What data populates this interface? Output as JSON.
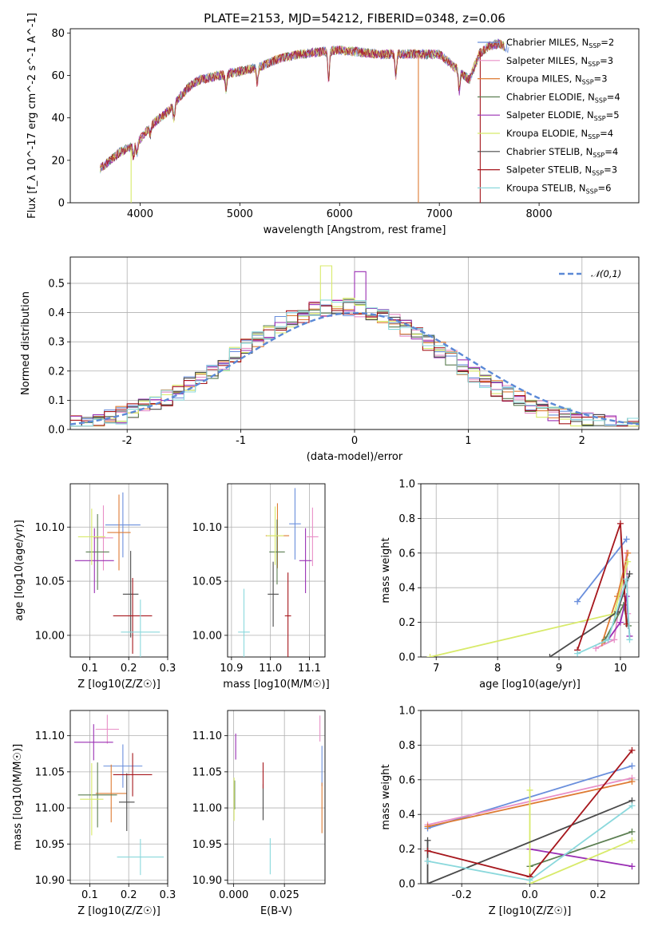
{
  "colors": [
    "#6a8fdc",
    "#e88fc7",
    "#de7b33",
    "#5c7f52",
    "#9a2fb4",
    "#d8ea6a",
    "#4a4a4a",
    "#a6161c",
    "#8ad8dc"
  ],
  "chart_data": [
    {
      "id": "spectrum",
      "type": "line",
      "title": "PLATE=2153, MJD=54212, FIBERID=0348, z=0.06",
      "xlabel": "wavelength [Angstrom, rest frame]",
      "ylabel": "Flux [f_λ 10^-17 erg cm^-2 s^-1 A^-1]",
      "xlim": [
        3300,
        9000
      ],
      "ylim": [
        0,
        82
      ],
      "xticks": [
        4000,
        5000,
        6000,
        7000,
        8000
      ],
      "yticks": [
        0,
        20,
        40,
        60,
        80
      ],
      "legend_position": "upper-right",
      "legend": [
        {
          "model": "Chabrier MILES",
          "nssp": "2"
        },
        {
          "model": "Salpeter MILES",
          "nssp": "3"
        },
        {
          "model": "Kroupa MILES",
          "nssp": "3"
        },
        {
          "model": "Chabrier ELODIE",
          "nssp": "4"
        },
        {
          "model": "Salpeter ELODIE",
          "nssp": "5"
        },
        {
          "model": "Kroupa ELODIE",
          "nssp": "4"
        },
        {
          "model": "Chabrier STELIB",
          "nssp": "4"
        },
        {
          "model": "Salpeter STELIB",
          "nssp": "3"
        },
        {
          "model": "Kroupa STELIB",
          "nssp": "6"
        }
      ],
      "continuum": {
        "x": [
          3600,
          3700,
          3800,
          3900,
          4000,
          4100,
          4200,
          4300,
          4400,
          4500,
          4600,
          4800,
          5000,
          5200,
          5400,
          5600,
          5800,
          6000,
          6200,
          6400,
          6600,
          6800,
          7000,
          7200,
          7300,
          7400,
          7500,
          7600,
          7700
        ],
        "y": [
          16,
          20,
          24,
          26,
          30,
          36,
          40,
          44,
          50,
          55,
          58,
          60,
          62,
          64,
          68,
          70,
          71,
          72,
          71,
          70,
          70,
          70,
          70,
          62,
          58,
          70,
          74,
          75,
          72
        ]
      }
    },
    {
      "id": "residuals",
      "type": "line",
      "xlabel": "(data-model)/error",
      "ylabel": "Normed distribution",
      "xlim": [
        -2.5,
        2.5
      ],
      "ylim": [
        0,
        0.59
      ],
      "xticks": [
        -2,
        -1,
        0,
        1,
        2
      ],
      "yticks": [
        0.0,
        0.1,
        0.2,
        0.3,
        0.4,
        0.5
      ],
      "grid": true,
      "legend_position": "upper-right",
      "normal_curve": {
        "label": "𝒩(0,1)",
        "mu": 0,
        "sigma": 1,
        "style": "dashed"
      }
    },
    {
      "id": "age-vs-Z",
      "type": "scatter",
      "xlabel": "Z [log10(Z/Z☉)]",
      "ylabel": "age  [log10(age/yr)]",
      "xlim": [
        0.05,
        0.3
      ],
      "ylim": [
        9.98,
        10.14
      ],
      "xticks": [
        0.1,
        0.2,
        0.3
      ],
      "yticks": [
        10.0,
        10.05,
        10.1
      ],
      "grid": true,
      "points": [
        {
          "x": 0.185,
          "y": 10.102,
          "xerr": 0.045,
          "yerr": 0.03
        },
        {
          "x": 0.135,
          "y": 10.09,
          "xerr": 0.025,
          "yerr": 0.03
        },
        {
          "x": 0.175,
          "y": 10.095,
          "xerr": 0.03,
          "yerr": 0.035
        },
        {
          "x": 0.12,
          "y": 10.077,
          "xerr": 0.03,
          "yerr": 0.035
        },
        {
          "x": 0.112,
          "y": 10.069,
          "xerr": 0.05,
          "yerr": 0.03
        },
        {
          "x": 0.105,
          "y": 10.091,
          "xerr": 0.035,
          "yerr": 0.026
        },
        {
          "x": 0.205,
          "y": 10.038,
          "xerr": 0.02,
          "yerr": 0.04
        },
        {
          "x": 0.21,
          "y": 10.018,
          "xerr": 0.05,
          "yerr": 0.035
        },
        {
          "x": 0.23,
          "y": 10.003,
          "xerr": 0.05,
          "yerr": 0.03
        }
      ]
    },
    {
      "id": "age-vs-mass",
      "type": "scatter",
      "xlabel": "mass [log10(M/M☉)]",
      "ylabel": "",
      "xlim": [
        10.89,
        11.14
      ],
      "ylim": [
        9.98,
        10.14
      ],
      "xticks": [
        10.9,
        11.0,
        11.1
      ],
      "yticks": [
        10.0,
        10.05,
        10.1
      ],
      "grid": true,
      "points": [
        {
          "x": 11.063,
          "y": 10.103,
          "xerr": 0.015,
          "yerr": 0.033
        },
        {
          "x": 11.108,
          "y": 10.091,
          "xerr": 0.015,
          "yerr": 0.027
        },
        {
          "x": 11.018,
          "y": 10.092,
          "xerr": 0.03,
          "yerr": 0.03
        },
        {
          "x": 11.017,
          "y": 10.077,
          "xerr": 0.02,
          "yerr": 0.03
        },
        {
          "x": 11.09,
          "y": 10.069,
          "xerr": 0.016,
          "yerr": 0.03
        },
        {
          "x": 11.012,
          "y": 10.092,
          "xerr": 0.022,
          "yerr": 0.027
        },
        {
          "x": 11.007,
          "y": 10.038,
          "xerr": 0.014,
          "yerr": 0.03
        },
        {
          "x": 11.045,
          "y": 10.018,
          "xerr": 0.008,
          "yerr": 0.04
        },
        {
          "x": 10.932,
          "y": 10.003,
          "xerr": 0.015,
          "yerr": 0.04
        }
      ]
    },
    {
      "id": "weight-vs-age",
      "type": "line",
      "xlabel": "age  [log10(age/yr)]",
      "ylabel": "mass weight",
      "xlim": [
        6.75,
        10.3
      ],
      "ylim": [
        0,
        1.0
      ],
      "xticks": [
        7,
        8,
        9,
        10
      ],
      "yticks": [
        0.0,
        0.2,
        0.4,
        0.6,
        0.8,
        1.0
      ],
      "grid": true,
      "series": [
        {
          "x": [
            9.3,
            10.1
          ],
          "y": [
            0.32,
            0.68
          ]
        },
        {
          "x": [
            9.6,
            9.9,
            10.1,
            10.12
          ],
          "y": [
            0.05,
            0.1,
            0.6,
            0.25
          ]
        },
        {
          "x": [
            9.7,
            9.95,
            10.12
          ],
          "y": [
            0.08,
            0.35,
            0.6
          ]
        },
        {
          "x": [
            9.75,
            10.05,
            10.13
          ],
          "y": [
            0.1,
            0.3,
            0.18
          ]
        },
        {
          "x": [
            9.8,
            10.0,
            10.1,
            10.15
          ],
          "y": [
            0.1,
            0.2,
            0.35,
            0.12
          ]
        },
        {
          "x": [
            6.9,
            9.9,
            10.12
          ],
          "y": [
            0.0,
            0.25,
            0.55
          ]
        },
        {
          "x": [
            8.85,
            9.95,
            10.15
          ],
          "y": [
            0.0,
            0.26,
            0.48
          ]
        },
        {
          "x": [
            9.3,
            10.0,
            10.1
          ],
          "y": [
            0.04,
            0.77,
            0.19
          ]
        },
        {
          "x": [
            9.3,
            9.8,
            10.1,
            10.15
          ],
          "y": [
            0.02,
            0.1,
            0.45,
            0.1
          ]
        }
      ]
    },
    {
      "id": "mass-vs-Z",
      "type": "scatter",
      "xlabel": "Z [log10(Z/Z☉)]",
      "ylabel": "mass [log10(M/M☉)]",
      "xlim": [
        0.05,
        0.3
      ],
      "ylim": [
        10.895,
        11.135
      ],
      "xticks": [
        0.1,
        0.2,
        0.3
      ],
      "yticks": [
        10.9,
        10.95,
        11.0,
        11.05,
        11.1
      ],
      "grid": true,
      "points": [
        {
          "x": 0.185,
          "y": 11.058,
          "xerr": 0.05,
          "yerr": 0.03
        },
        {
          "x": 0.145,
          "y": 11.109,
          "xerr": 0.03,
          "yerr": 0.02
        },
        {
          "x": 0.155,
          "y": 11.02,
          "xerr": 0.04,
          "yerr": 0.04
        },
        {
          "x": 0.12,
          "y": 11.018,
          "xerr": 0.05,
          "yerr": 0.045
        },
        {
          "x": 0.11,
          "y": 11.091,
          "xerr": 0.05,
          "yerr": 0.025
        },
        {
          "x": 0.105,
          "y": 11.012,
          "xerr": 0.03,
          "yerr": 0.05
        },
        {
          "x": 0.195,
          "y": 11.008,
          "xerr": 0.02,
          "yerr": 0.04
        },
        {
          "x": 0.21,
          "y": 11.046,
          "xerr": 0.05,
          "yerr": 0.03
        },
        {
          "x": 0.23,
          "y": 10.932,
          "xerr": 0.06,
          "yerr": 0.025
        }
      ]
    },
    {
      "id": "mass-vs-EBV",
      "type": "scatter",
      "xlabel": "E(B-V)",
      "ylabel": "",
      "xlim": [
        -0.003,
        0.045
      ],
      "ylim": [
        10.895,
        11.135
      ],
      "xticks": [
        0.0,
        0.025
      ],
      "yticks": [
        10.9,
        10.95,
        11.0,
        11.05,
        11.1
      ],
      "grid": true,
      "points": [
        {
          "x": 0.0435,
          "y": 11.058,
          "yerr": 0.028
        },
        {
          "x": 0.0425,
          "y": 11.11,
          "yerr": 0.018
        },
        {
          "x": 0.0435,
          "y": 11.0,
          "yerr": 0.035
        },
        {
          "x": 0.0005,
          "y": 11.018,
          "yerr": 0.02
        },
        {
          "x": 0.001,
          "y": 11.085,
          "yerr": 0.018
        },
        {
          "x": 0.0002,
          "y": 11.012,
          "yerr": 0.03
        },
        {
          "x": 0.0145,
          "y": 11.008,
          "yerr": 0.025
        },
        {
          "x": 0.0145,
          "y": 11.045,
          "yerr": 0.018
        },
        {
          "x": 0.018,
          "y": 10.933,
          "yerr": 0.025
        }
      ]
    },
    {
      "id": "weight-vs-Z",
      "type": "line",
      "xlabel": "Z [log10(Z/Z☉)]",
      "ylabel": "mass weight",
      "xlim": [
        -0.32,
        0.32
      ],
      "ylim": [
        0,
        1.0
      ],
      "xticks": [
        -0.2,
        0.0,
        0.2
      ],
      "yticks": [
        0.0,
        0.2,
        0.4,
        0.6,
        0.8,
        1.0
      ],
      "grid": true,
      "series": [
        {
          "x": [
            -0.3,
            0.3
          ],
          "y": [
            0.32,
            0.68
          ]
        },
        {
          "x": [
            -0.3,
            0.3
          ],
          "y": [
            0.34,
            0.61
          ]
        },
        {
          "x": [
            -0.3,
            0.3
          ],
          "y": [
            0.33,
            0.59
          ]
        },
        {
          "x": [
            0.0,
            0.3
          ],
          "y": [
            0.1,
            0.3
          ]
        },
        {
          "x": [
            0.0,
            0.3
          ],
          "y": [
            0.2,
            0.1
          ]
        },
        {
          "x": [
            0.0,
            0.0,
            0.3
          ],
          "y": [
            0.54,
            0.0,
            0.25
          ]
        },
        {
          "x": [
            -0.3,
            -0.3,
            0.3
          ],
          "y": [
            0.25,
            0.0,
            0.48
          ]
        },
        {
          "x": [
            -0.3,
            0.0,
            0.3
          ],
          "y": [
            0.19,
            0.04,
            0.77
          ]
        },
        {
          "x": [
            -0.3,
            0.0,
            0.3
          ],
          "y": [
            0.13,
            0.02,
            0.45
          ]
        }
      ]
    }
  ]
}
